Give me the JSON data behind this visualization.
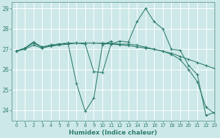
{
  "xlabel": "Humidex (Indice chaleur)",
  "xlim": [
    -0.5,
    23
  ],
  "ylim": [
    23.5,
    29.3
  ],
  "yticks": [
    24,
    25,
    26,
    27,
    28,
    29
  ],
  "xticks": [
    0,
    1,
    2,
    3,
    4,
    5,
    6,
    7,
    8,
    9,
    10,
    11,
    12,
    13,
    14,
    15,
    16,
    17,
    18,
    19,
    20,
    21,
    22,
    23
  ],
  "bg_color": "#cde8e8",
  "line_color": "#2e7d6e",
  "grid_color": "#ffffff",
  "lines": [
    {
      "x": [
        0,
        1,
        2,
        3,
        4,
        5,
        6,
        7,
        8,
        9,
        10,
        11
      ],
      "y": [
        26.9,
        27.05,
        27.35,
        27.1,
        27.2,
        27.25,
        27.3,
        25.3,
        23.95,
        24.6,
        27.2,
        27.4
      ]
    },
    {
      "x": [
        0,
        1,
        2,
        3,
        4,
        5,
        6,
        7,
        8,
        9,
        10,
        11,
        12,
        13,
        14,
        15,
        16,
        17,
        18,
        19,
        20,
        21,
        22,
        23
      ],
      "y": [
        26.9,
        27.05,
        27.35,
        27.1,
        27.2,
        27.25,
        27.3,
        27.3,
        27.25,
        25.9,
        25.85,
        27.25,
        27.4,
        27.35,
        28.35,
        29.0,
        28.35,
        28.0,
        27.0,
        26.95,
        26.2,
        25.75,
        23.75,
        23.9
      ]
    },
    {
      "x": [
        0,
        1,
        2,
        3,
        4,
        5,
        6,
        7,
        8,
        9,
        10,
        11,
        12,
        13,
        14,
        15,
        16,
        17,
        18,
        19,
        20,
        21,
        22,
        23
      ],
      "y": [
        26.9,
        27.0,
        27.2,
        27.05,
        27.15,
        27.2,
        27.25,
        27.3,
        27.3,
        27.3,
        27.28,
        27.25,
        27.22,
        27.18,
        27.12,
        27.05,
        27.0,
        26.9,
        26.8,
        26.65,
        26.5,
        26.35,
        26.2,
        26.05
      ]
    },
    {
      "x": [
        0,
        1,
        2,
        3,
        4,
        5,
        6,
        7,
        8,
        9,
        10,
        11,
        12,
        13,
        14,
        15,
        16,
        17,
        18,
        19,
        20,
        21,
        22,
        23
      ],
      "y": [
        26.9,
        27.05,
        27.3,
        27.1,
        27.2,
        27.25,
        27.3,
        27.3,
        27.3,
        27.3,
        27.3,
        27.3,
        27.25,
        27.25,
        27.2,
        27.1,
        27.0,
        26.9,
        26.75,
        26.5,
        26.0,
        25.4,
        24.15,
        23.85
      ]
    }
  ]
}
